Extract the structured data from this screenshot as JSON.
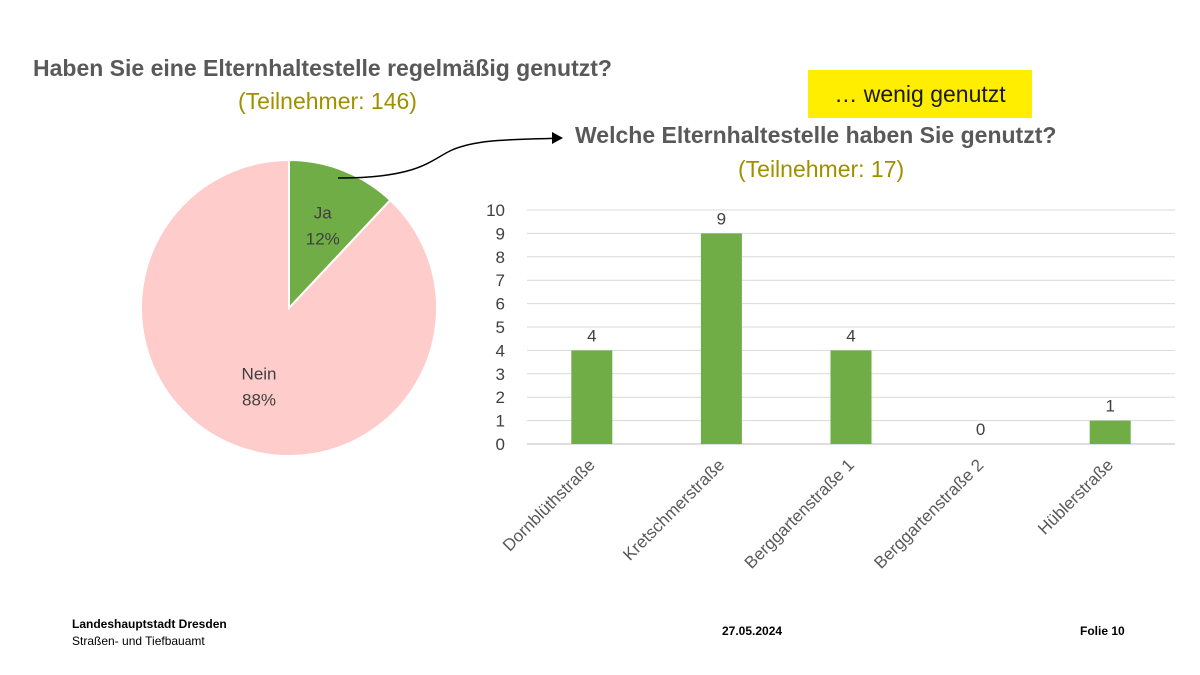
{
  "slide": {
    "pie_title": "Haben Sie eine Elternhaltestelle regelmäßig genutzt?",
    "pie_subtitle": "(Teilnehmer: 146)",
    "highlight": "… wenig genutzt",
    "bar_title": "Welche Elternhaltestelle haben Sie genutzt?",
    "bar_subtitle": "(Teilnehmer: 17)"
  },
  "footer": {
    "org": "Landeshauptstadt Dresden",
    "dept": "Straßen- und Tiefbauamt",
    "date": "27.05.2024",
    "slide": "Folie 10"
  },
  "colors": {
    "ja": "#70ad47",
    "nein": "#ffcccc",
    "bar": "#70ad47",
    "subtitle": "#a09000",
    "highlight_bg": "#ffee00"
  },
  "chart_data": [
    {
      "type": "pie",
      "title": "Haben Sie eine Elternhaltestelle regelmäßig genutzt?",
      "subtitle": "(Teilnehmer: 146)",
      "slices": [
        {
          "label": "Ja",
          "value": 12,
          "display": "12%"
        },
        {
          "label": "Nein",
          "value": 88,
          "display": "88%"
        }
      ]
    },
    {
      "type": "bar",
      "title": "Welche Elternhaltestelle haben Sie genutzt?",
      "subtitle": "(Teilnehmer: 17)",
      "categories": [
        "Dornblüthstraße",
        "Kretschmerstraße",
        "Berggartenstraße 1",
        "Berggartenstraße 2",
        "Hüblerstraße"
      ],
      "values": [
        4,
        9,
        4,
        0,
        1
      ],
      "ylim": [
        0,
        10
      ],
      "yticks": [
        0,
        1,
        2,
        3,
        4,
        5,
        6,
        7,
        8,
        9,
        10
      ],
      "grid": true,
      "data_labels": true
    }
  ]
}
